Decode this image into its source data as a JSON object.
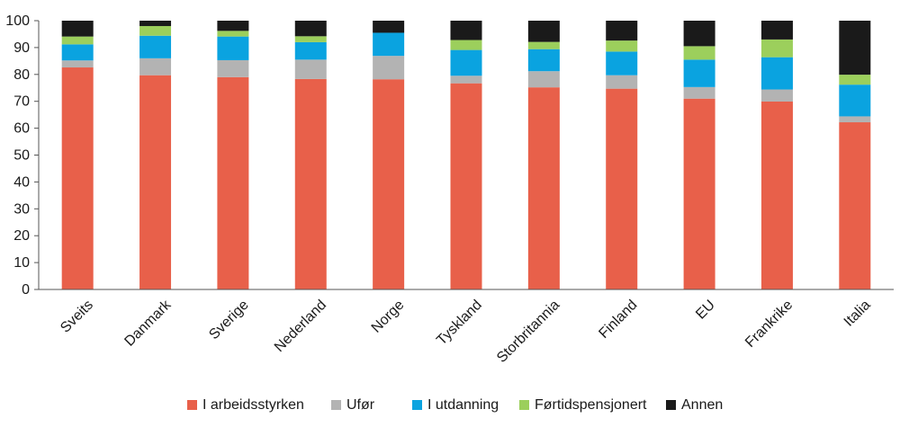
{
  "chart_data": {
    "type": "bar",
    "stacked": true,
    "categories": [
      "Sveits",
      "Danmark",
      "Sverige",
      "Nederland",
      "Norge",
      "Tyskland",
      "Storbritannia",
      "Finland",
      "EU",
      "Frankrike",
      "Italia"
    ],
    "series": [
      {
        "name": "I arbeidsstyrken",
        "color": "#e8604a",
        "values": [
          82.6,
          79.7,
          79.0,
          78.3,
          78.2,
          76.7,
          75.2,
          74.7,
          71.0,
          69.9,
          62.2
        ]
      },
      {
        "name": "Ufør",
        "color": "#b3b3b3",
        "values": [
          2.6,
          6.3,
          6.3,
          7.2,
          8.7,
          2.8,
          6.0,
          5.0,
          4.3,
          4.5,
          2.2
        ]
      },
      {
        "name": "I utdanning",
        "color": "#0aa3e0",
        "values": [
          6.0,
          8.4,
          8.8,
          6.5,
          8.6,
          9.6,
          8.2,
          8.8,
          10.2,
          12.0,
          11.8
        ]
      },
      {
        "name": "Førtidspensjonert",
        "color": "#9ccf5c",
        "values": [
          2.9,
          3.6,
          2.1,
          2.2,
          0.0,
          3.7,
          2.7,
          4.1,
          5.0,
          6.6,
          3.7
        ]
      },
      {
        "name": "Annen",
        "color": "#1a1a1a",
        "values": [
          5.9,
          2.0,
          3.8,
          5.8,
          4.5,
          7.2,
          7.9,
          7.4,
          9.5,
          7.0,
          20.1
        ]
      }
    ],
    "ylim": [
      0,
      100
    ],
    "yticks": [
      0,
      10,
      20,
      30,
      40,
      50,
      60,
      70,
      80,
      90,
      100
    ],
    "grid": false,
    "legend_position": "bottom"
  }
}
